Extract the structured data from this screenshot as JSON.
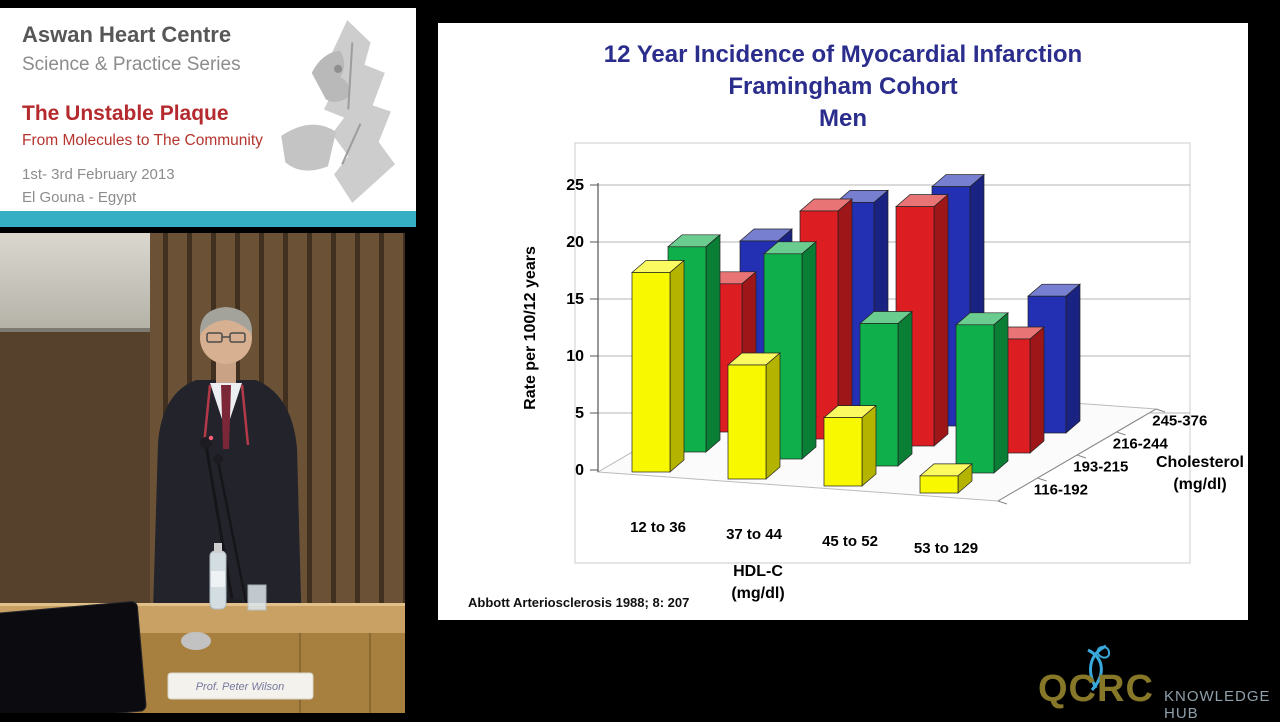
{
  "event_card": {
    "org": "Aswan Heart Centre",
    "org_sub": "Science & Practice Series",
    "event_title": "The Unstable Plaque",
    "event_sub": "From Molecules to The Community",
    "date": "1st- 3rd February 2013",
    "location": "El Gouna - Egypt",
    "accent_color": "#35afc3"
  },
  "photo": {
    "nameplate": "Prof. Peter Wilson"
  },
  "logo": {
    "name": "QCRC",
    "tagline": "KNOWLEDGE HUB",
    "brand_color": "#867729",
    "tagline_color": "#8fa0aa",
    "icon_color": "#39a9dc"
  },
  "chart_data": {
    "type": "bar",
    "projection": "3d",
    "title": "12 Year Incidence of Myocardial Infarction",
    "subtitle": "Framingham Cohort",
    "group_label": "Men",
    "ylabel": "Rate per 100/12 years",
    "xlabel_lines": [
      "HDL-C",
      "(mg/dl)"
    ],
    "zlabel_lines": [
      "Cholesterol",
      "(mg/dl)"
    ],
    "categories": [
      "12 to 36",
      "37 to 44",
      "45 to 52",
      "53 to 129"
    ],
    "series": [
      {
        "name": "116-192",
        "color": "#f8f800",
        "values": [
          17.5,
          10,
          6,
          1.5
        ]
      },
      {
        "name": "193-215",
        "color": "#0faf4b",
        "values": [
          18,
          18,
          12.5,
          13
        ]
      },
      {
        "name": "216-244",
        "color": "#dc1e22",
        "values": [
          13,
          20,
          21,
          10
        ]
      },
      {
        "name": "245-376",
        "color": "#2430b4",
        "values": [
          15,
          19,
          21,
          12
        ]
      }
    ],
    "ylim": [
      0,
      25
    ],
    "yticks": [
      0,
      5,
      10,
      15,
      20,
      25
    ],
    "grid": true,
    "citation": "Abbott Arteriosclerosis 1988; 8: 207"
  }
}
